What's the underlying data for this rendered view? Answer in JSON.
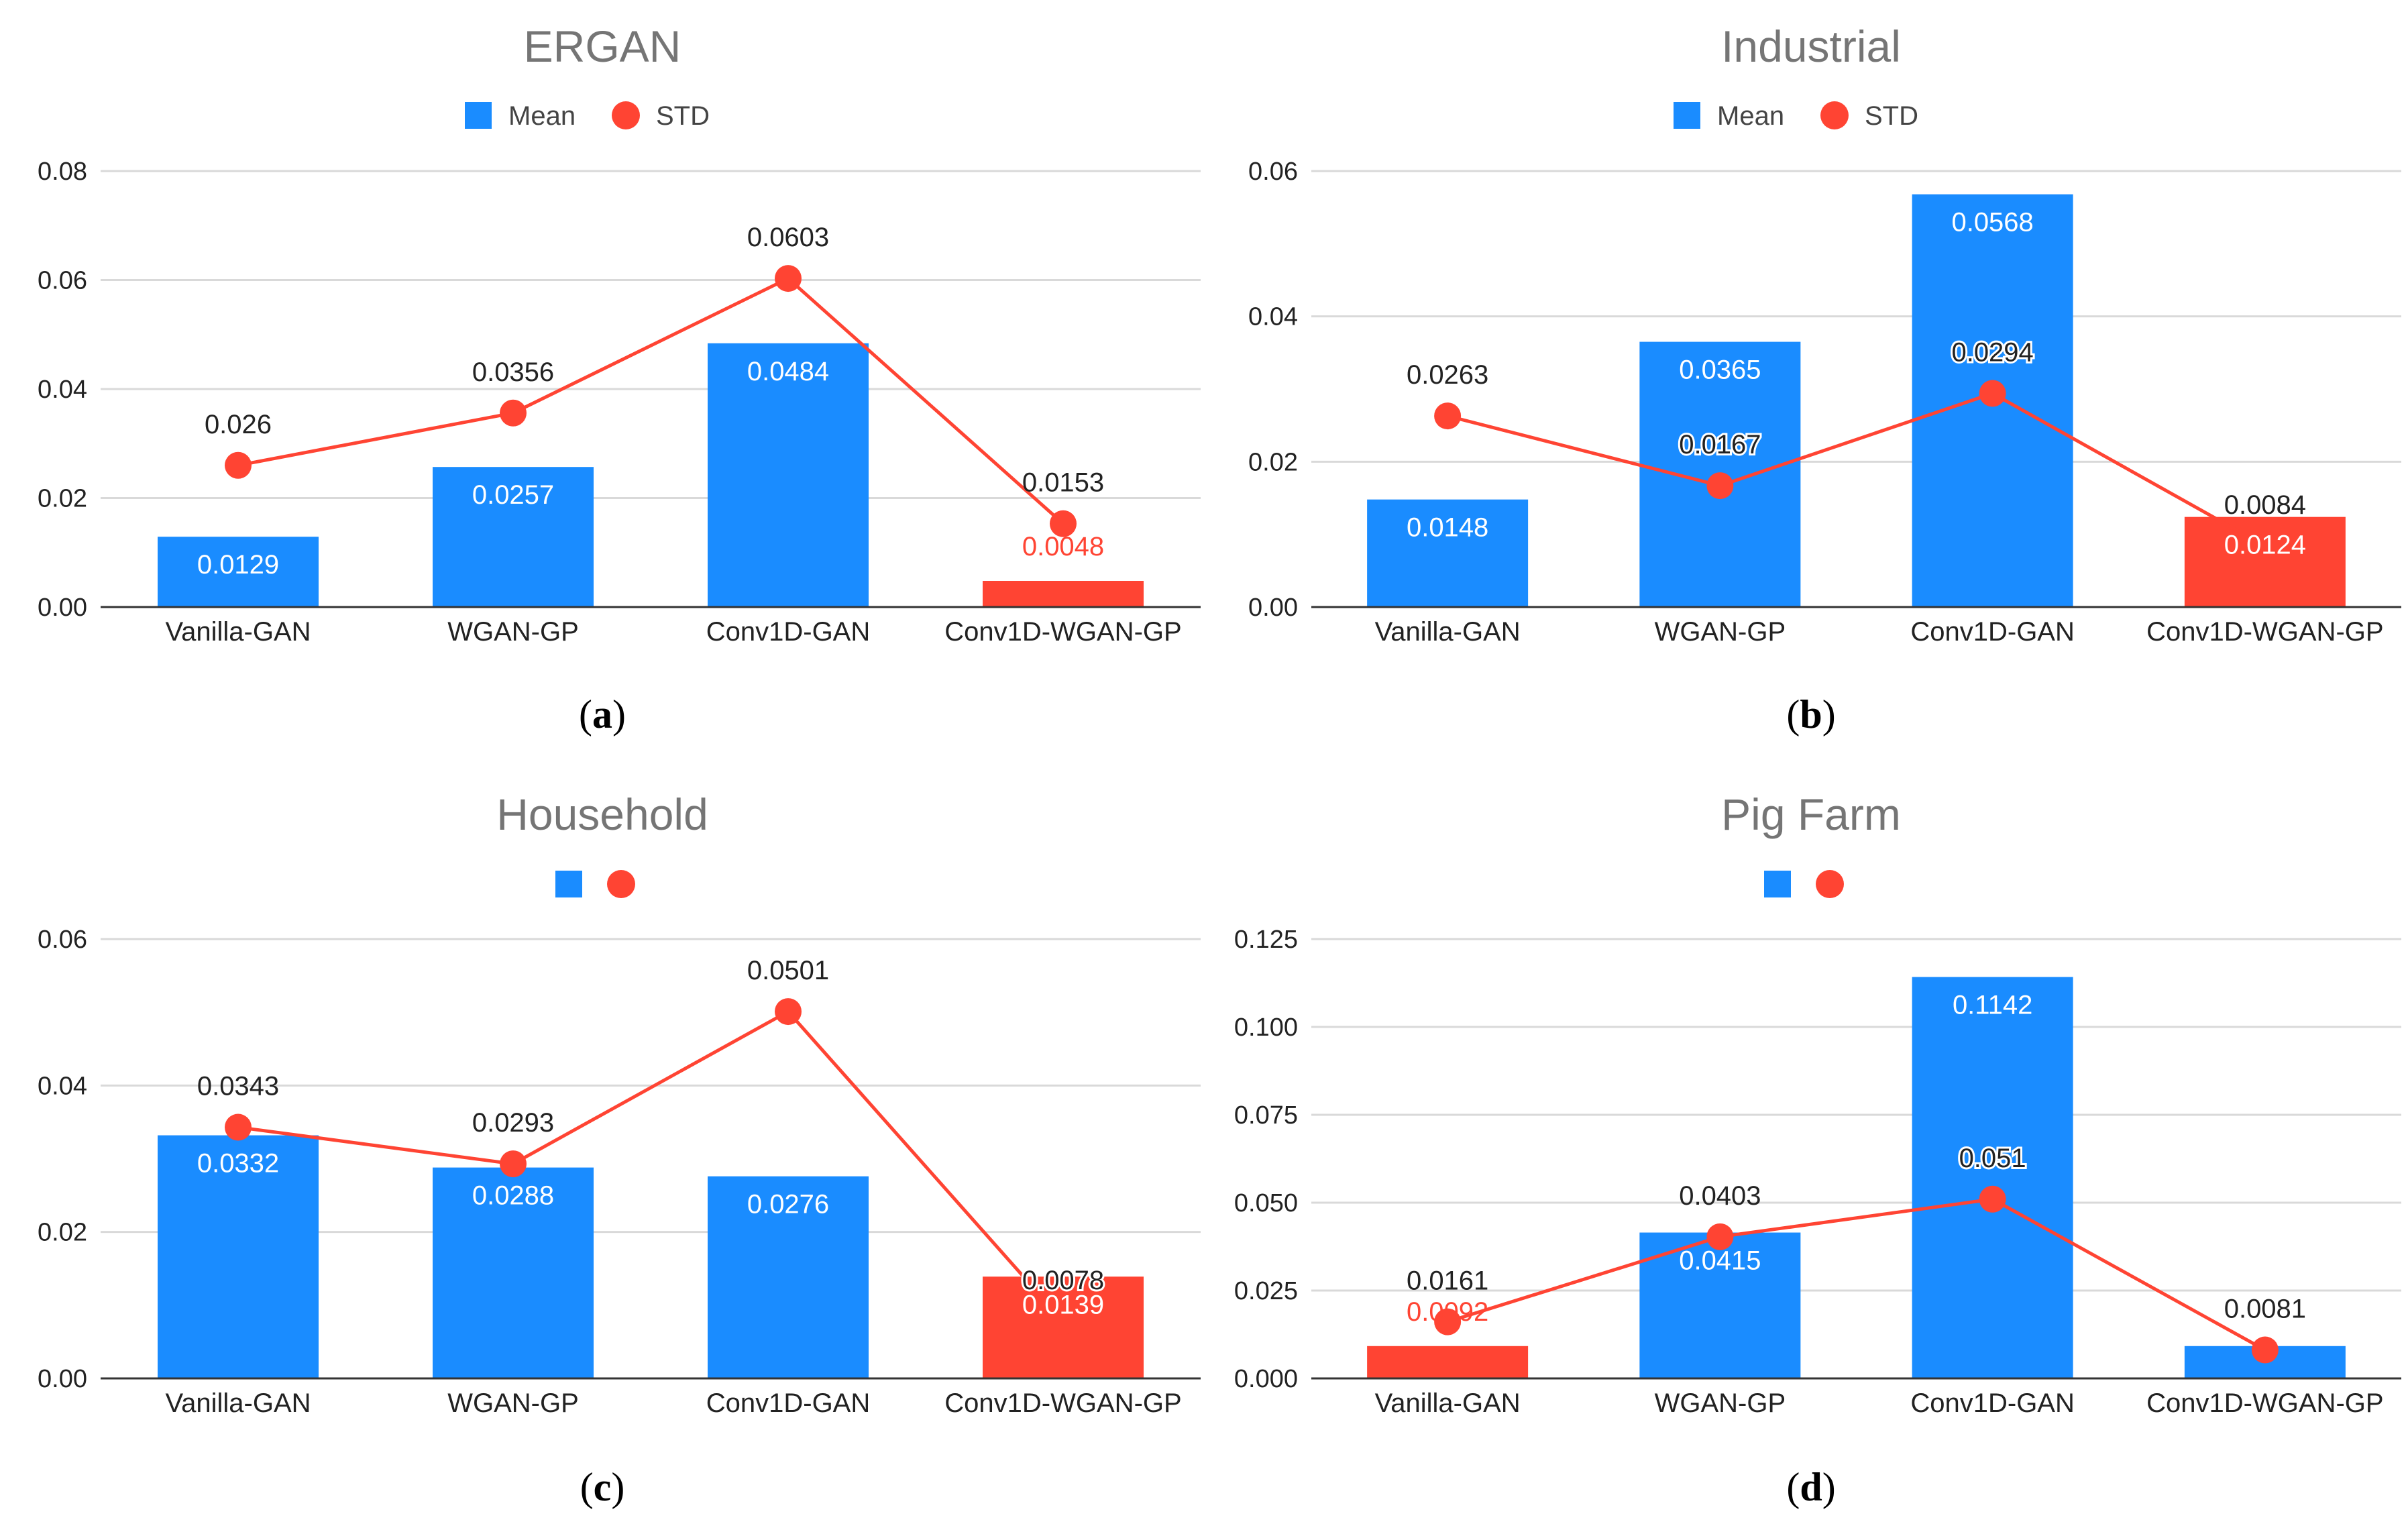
{
  "colors": {
    "mean": "#1a8cff",
    "std": "#ff4433",
    "highlight": "#ff4433",
    "grid": "#d9d9d9",
    "axis": "#333333"
  },
  "chart_data": [
    {
      "id": "a",
      "type": "bar",
      "title": "ERGAN",
      "caption_letter": "a",
      "legend": {
        "mean": "Mean",
        "std": "STD"
      },
      "categories": [
        "Vanilla-GAN",
        "WGAN-GP",
        "Conv1D-GAN",
        "Conv1D-WGAN-GP"
      ],
      "ylim": [
        0,
        0.08
      ],
      "yticks": [
        "0.00",
        "0.02",
        "0.04",
        "0.06",
        "0.08"
      ],
      "series": [
        {
          "name": "Mean",
          "kind": "bar",
          "values": [
            0.0129,
            0.0257,
            0.0484,
            0.0048
          ],
          "labels": [
            "0.0129",
            "0.0257",
            "0.0484",
            "0.0048"
          ],
          "highlight_index": 3
        },
        {
          "name": "STD",
          "kind": "line",
          "values": [
            0.026,
            0.0356,
            0.0603,
            0.0153
          ],
          "labels": [
            "0.026",
            "0.0356",
            "0.0603",
            "0.0153"
          ]
        }
      ]
    },
    {
      "id": "b",
      "type": "bar",
      "title": "Industrial",
      "caption_letter": "b",
      "legend": {
        "mean": "Mean",
        "std": "STD"
      },
      "categories": [
        "Vanilla-GAN",
        "WGAN-GP",
        "Conv1D-GAN",
        "Conv1D-WGAN-GP"
      ],
      "ylim": [
        0,
        0.06
      ],
      "yticks": [
        "0.00",
        "0.02",
        "0.04",
        "0.06"
      ],
      "series": [
        {
          "name": "Mean",
          "kind": "bar",
          "values": [
            0.0148,
            0.0365,
            0.0568,
            0.0124
          ],
          "labels": [
            "0.0148",
            "0.0365",
            "0.0568",
            "0.0124"
          ],
          "highlight_index": 3
        },
        {
          "name": "STD",
          "kind": "line",
          "values": [
            0.0263,
            0.0167,
            0.0294,
            0.0084
          ],
          "labels": [
            "0.0263",
            "0.0167",
            "0.0294",
            "0.0084"
          ]
        }
      ]
    },
    {
      "id": "c",
      "type": "bar",
      "title": "Household",
      "caption_letter": "c",
      "legend": {
        "mean": "",
        "std": ""
      },
      "categories": [
        "Vanilla-GAN",
        "WGAN-GP",
        "Conv1D-GAN",
        "Conv1D-WGAN-GP"
      ],
      "ylim": [
        0,
        0.06
      ],
      "yticks": [
        "0.00",
        "0.02",
        "0.04",
        "0.06"
      ],
      "series": [
        {
          "name": "Mean",
          "kind": "bar",
          "values": [
            0.0332,
            0.0288,
            0.0276,
            0.0139
          ],
          "labels": [
            "0.0332",
            "0.0288",
            "0.0276",
            "0.0139"
          ],
          "highlight_index": 3
        },
        {
          "name": "STD",
          "kind": "line",
          "values": [
            0.0343,
            0.0293,
            0.0501,
            0.0078
          ],
          "labels": [
            "0.0343",
            "0.0293",
            "0.0501",
            "0.0078"
          ]
        }
      ]
    },
    {
      "id": "d",
      "type": "bar",
      "title": "Pig Farm",
      "caption_letter": "d",
      "legend": {
        "mean": "",
        "std": ""
      },
      "categories": [
        "Vanilla-GAN",
        "WGAN-GP",
        "Conv1D-GAN",
        "Conv1D-WGAN-GP"
      ],
      "ylim": [
        0,
        0.125
      ],
      "yticks": [
        "0.000",
        "0.025",
        "0.050",
        "0.075",
        "0.100",
        "0.125"
      ],
      "series": [
        {
          "name": "Mean",
          "kind": "bar",
          "values": [
            0.0092,
            0.0415,
            0.1142,
            0.0092
          ],
          "labels": [
            "0.0092",
            "0.0415",
            "0.1142",
            ""
          ],
          "highlight_index": 0
        },
        {
          "name": "STD",
          "kind": "line",
          "values": [
            0.0161,
            0.0403,
            0.051,
            0.0081
          ],
          "labels": [
            "0.0161",
            "0.0403",
            "0.051",
            "0.0081"
          ]
        }
      ]
    }
  ]
}
